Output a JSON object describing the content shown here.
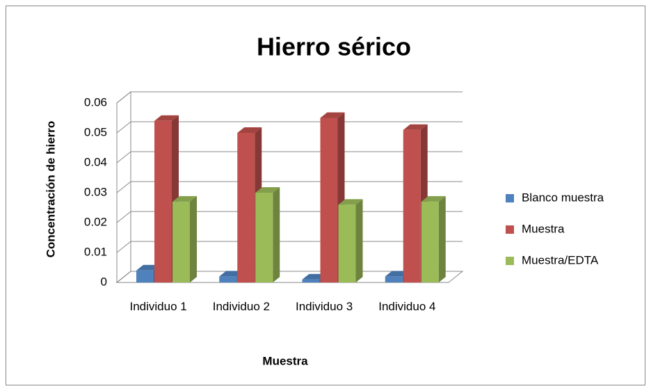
{
  "chart_data": {
    "type": "bar3d",
    "title": "Hierro sérico",
    "xlabel": "Muestra",
    "ylabel": "Concentración de hierro",
    "categories": [
      "Individuo 1",
      "Individuo 2",
      "Individuo 3",
      "Individuo 4"
    ],
    "series": [
      {
        "name": "Blanco muestra",
        "color": "#4f81bd",
        "values": [
          0.004,
          0.002,
          0.001,
          0.002
        ]
      },
      {
        "name": "Muestra",
        "color": "#c0504d",
        "values": [
          0.054,
          0.05,
          0.055,
          0.051
        ]
      },
      {
        "name": "Muestra/EDTA",
        "color": "#9bbb59",
        "values": [
          0.027,
          0.03,
          0.026,
          0.027
        ]
      }
    ],
    "ylim": [
      0,
      0.06
    ],
    "yticks": [
      0,
      0.01,
      0.02,
      0.03,
      0.04,
      0.05,
      0.06
    ],
    "grid": true,
    "legend": "right"
  }
}
